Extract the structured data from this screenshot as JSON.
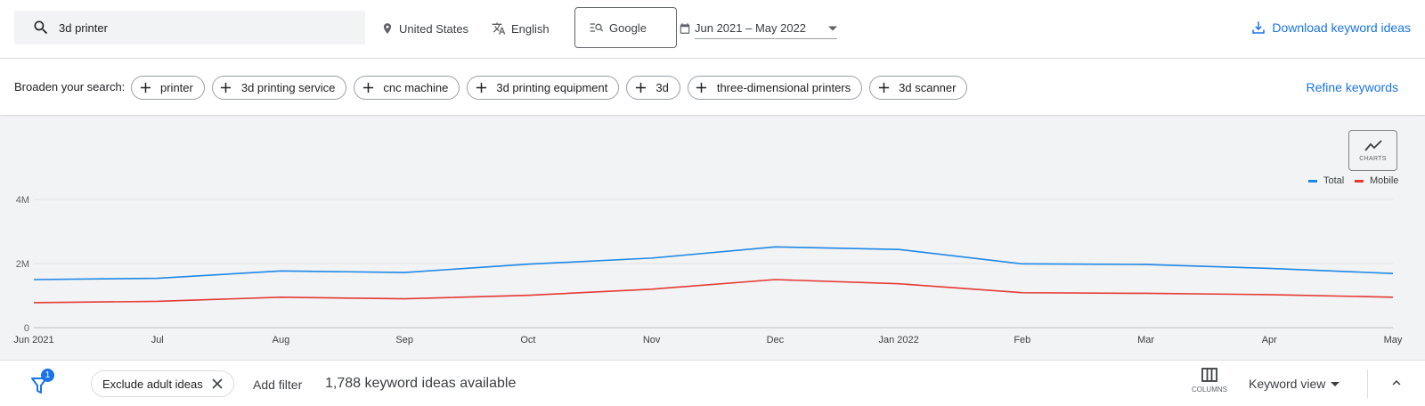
{
  "search": {
    "query": "3d printer"
  },
  "targeting": {
    "location": "United States",
    "language": "English",
    "search_engine": "Google",
    "date_range": "Jun 2021 – May 2022"
  },
  "actions": {
    "download_label": "Download keyword ideas",
    "refine_label": "Refine keywords"
  },
  "broaden": {
    "label": "Broaden your search:",
    "chips": [
      "printer",
      "3d printing service",
      "cnc machine",
      "3d printing equipment",
      "3d",
      "three-dimensional printers",
      "3d scanner"
    ]
  },
  "chart_toggle": {
    "label": "CHARTS"
  },
  "chart_data": {
    "type": "line",
    "categories": [
      "Jun 2021",
      "Jul",
      "Aug",
      "Sep",
      "Oct",
      "Nov",
      "Dec",
      "Jan 2022",
      "Feb",
      "Mar",
      "Apr",
      "May"
    ],
    "series": [
      {
        "name": "Total",
        "color": "#1e88e5",
        "values": [
          1500000,
          1540000,
          1770000,
          1720000,
          1980000,
          2170000,
          2520000,
          2440000,
          1990000,
          1970000,
          1850000,
          1690000
        ]
      },
      {
        "name": "Mobile",
        "color": "#e53935",
        "values": [
          780000,
          820000,
          950000,
          900000,
          1010000,
          1200000,
          1500000,
          1370000,
          1090000,
          1070000,
          1030000,
          950000
        ]
      }
    ],
    "ylim": [
      0,
      4000000
    ],
    "yticks": [
      {
        "value": 0,
        "label": "0"
      },
      {
        "value": 2000000,
        "label": "2M"
      },
      {
        "value": 4000000,
        "label": "4M"
      }
    ],
    "grid": true,
    "legend_position": "top-right"
  },
  "bottom": {
    "filter_count": "1",
    "exclude_chip_label": "Exclude adult ideas",
    "add_filter_label": "Add filter",
    "ideas_count_text": "1,788 keyword ideas available",
    "columns_label": "COLUMNS",
    "view_label": "Keyword view"
  }
}
